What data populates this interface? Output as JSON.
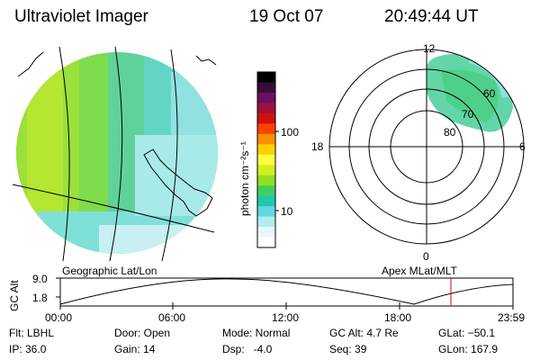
{
  "header": {
    "instrument": "Ultraviolet Imager",
    "date": "19 Oct 07",
    "time": "20:49:44 UT"
  },
  "colorbar": {
    "unit_label": "photon cm⁻²s⁻¹",
    "ticks": [
      "100",
      "10"
    ],
    "colors": [
      "#000000",
      "#3a0a3a",
      "#6a1060",
      "#a0103a",
      "#d01010",
      "#ff4000",
      "#ff9000",
      "#ffd000",
      "#ffff40",
      "#d0f020",
      "#90e020",
      "#40d060",
      "#20c8b0",
      "#60d8e0",
      "#b0ecf0",
      "#e8f8fa",
      "#ffffff"
    ]
  },
  "polar_plot": {
    "mlt_labels": [
      "12",
      "18",
      "6",
      "0"
    ],
    "lat_labels": [
      "60",
      "70",
      "80"
    ]
  },
  "altitude_plot": {
    "left_title": "Geographic Lat/Lon",
    "right_title": "Apex MLat/MLT",
    "ylabel": "GC Alt",
    "yticks": [
      "9.0",
      "1.8"
    ],
    "xticks": [
      "00:00",
      "06:00",
      "12:00",
      "18:00",
      "23:59"
    ],
    "marker_color": "#e00000"
  },
  "info": {
    "flt": "Flt: LBHL",
    "ip": "IP: 36.0",
    "door": "Door: Open",
    "gain": "Gain: 14",
    "mode": "Mode: Normal",
    "dsp": "Dsp:   -4.0",
    "gc_alt": "GC Alt: 4.7 Re",
    "seq": "Seq: 39",
    "glat": "GLat: −50.1",
    "glon": "GLon: 167.9"
  }
}
